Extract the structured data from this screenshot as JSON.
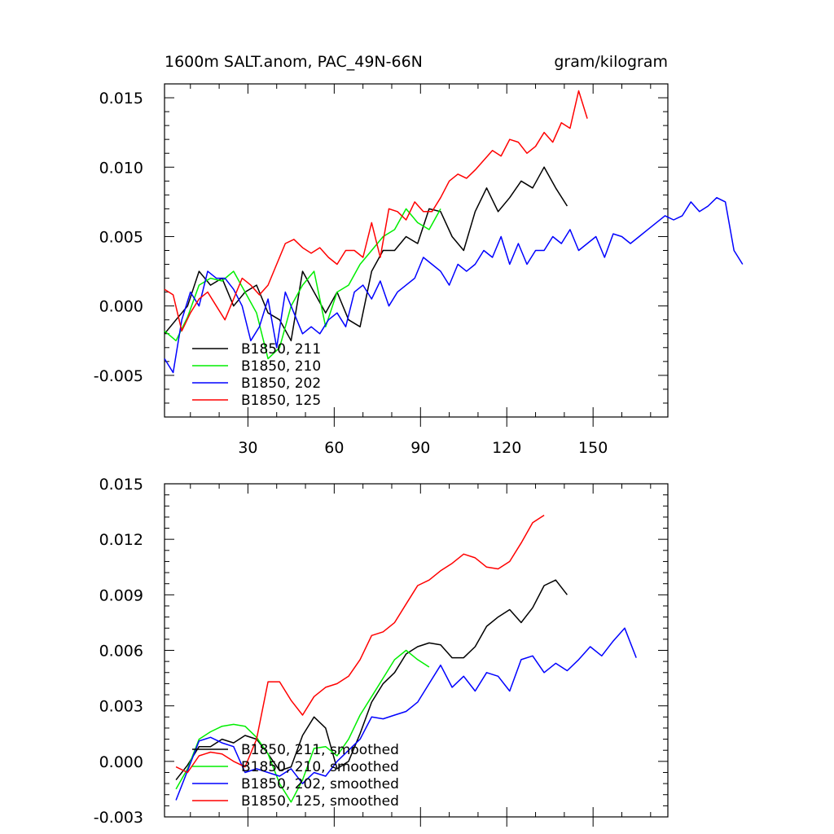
{
  "colors": {
    "211": "#000000",
    "210": "#00ee00",
    "202": "#0000ff",
    "125": "#ff0000"
  },
  "chart_data": [
    {
      "type": "line",
      "title": "1600m SALT.anom, PAC_49N-66N",
      "units": "gram/kilogram",
      "xlim": [
        1,
        176
      ],
      "ylim": [
        -0.008,
        0.016
      ],
      "x_ticks": [
        30,
        60,
        90,
        120,
        150
      ],
      "y_ticks": [
        -0.005,
        0.0,
        0.005,
        0.01,
        0.015
      ],
      "y_tick_labels": [
        "-0.005",
        "0.000",
        "0.005",
        "0.010",
        "0.015"
      ],
      "legend": [
        "B1850, 211",
        "B1850, 210",
        "B1850, 202",
        "B1850, 125"
      ],
      "series": [
        {
          "name": "B1850, 211",
          "color_key": "211",
          "x_start": 1,
          "x_step": 4,
          "values": [
            -0.002,
            -0.001,
            0.0,
            0.0025,
            0.0015,
            0.002,
            0.0,
            0.001,
            0.0015,
            -0.0005,
            -0.001,
            -0.0025,
            0.0025,
            0.001,
            -0.0005,
            0.001,
            -0.001,
            -0.0015,
            0.0025,
            0.004,
            0.004,
            0.005,
            0.0045,
            0.007,
            0.0068,
            0.005,
            0.004,
            0.0068,
            0.0085,
            0.0068,
            0.0078,
            0.009,
            0.0085,
            0.01,
            0.0085,
            0.0072
          ]
        },
        {
          "name": "B1850, 210",
          "color_key": "210",
          "x_start": 1,
          "x_step": 4,
          "values": [
            -0.0018,
            -0.0025,
            -0.0008,
            0.0015,
            0.002,
            0.0018,
            0.0025,
            0.001,
            -0.0005,
            -0.0038,
            -0.003,
            0.0,
            0.0015,
            0.0025,
            -0.0015,
            0.001,
            0.0015,
            0.003,
            0.004,
            0.005,
            0.0055,
            0.007,
            0.006,
            0.0055,
            0.007
          ]
        },
        {
          "name": "B1850, 202",
          "color_key": "202",
          "x_start": 1,
          "x_step": 3,
          "values": [
            -0.0038,
            -0.0048,
            -0.001,
            0.001,
            0.0,
            0.0025,
            0.002,
            0.002,
            0.0012,
            0.0,
            -0.0025,
            -0.0015,
            0.0005,
            -0.003,
            0.001,
            -0.0005,
            -0.002,
            -0.0015,
            -0.002,
            -0.001,
            -0.0005,
            -0.0015,
            0.001,
            0.0015,
            0.0005,
            0.0018,
            0.0,
            0.001,
            0.0015,
            0.002,
            0.0035,
            0.003,
            0.0025,
            0.0015,
            0.003,
            0.0025,
            0.003,
            0.004,
            0.0035,
            0.005,
            0.003,
            0.0045,
            0.003,
            0.004,
            0.004,
            0.005,
            0.0045,
            0.0055,
            0.004,
            0.0045,
            0.005,
            0.0035,
            0.0052,
            0.005,
            0.0045,
            0.005,
            0.0055,
            0.006,
            0.0065,
            0.0062,
            0.0065,
            0.0075,
            0.0068,
            0.0072,
            0.0078,
            0.0075,
            0.004,
            0.003
          ]
        },
        {
          "name": "B1850, 125",
          "color_key": "125",
          "x_start": 1,
          "x_step": 3,
          "values": [
            0.0012,
            0.0008,
            -0.0018,
            -0.0005,
            0.0005,
            0.001,
            0.0,
            -0.001,
            0.0005,
            0.002,
            0.0015,
            0.0008,
            0.0015,
            0.003,
            0.0045,
            0.0048,
            0.0042,
            0.0038,
            0.0042,
            0.0035,
            0.003,
            0.004,
            0.004,
            0.0035,
            0.006,
            0.0035,
            0.007,
            0.0068,
            0.0062,
            0.0075,
            0.0068,
            0.0068,
            0.0078,
            0.009,
            0.0095,
            0.0092,
            0.0098,
            0.0105,
            0.0112,
            0.0108,
            0.012,
            0.0118,
            0.011,
            0.0115,
            0.0125,
            0.0118,
            0.0132,
            0.0128,
            0.0155,
            0.0135
          ]
        }
      ]
    },
    {
      "type": "line",
      "title": "",
      "xlim": [
        1,
        176
      ],
      "ylim": [
        -0.003,
        0.015
      ],
      "x_ticks": [
        30,
        60,
        90,
        120,
        150
      ],
      "y_ticks": [
        -0.003,
        0.0,
        0.003,
        0.006,
        0.009,
        0.012,
        0.015
      ],
      "y_tick_labels": [
        "-0.003",
        "0.000",
        "0.003",
        "0.006",
        "0.009",
        "0.012",
        "0.015"
      ],
      "legend": [
        "B1850, 211, smoothed",
        "B1850, 210, smoothed",
        "B1850, 202, smoothed",
        "B1850, 125, smoothed"
      ],
      "series": [
        {
          "name": "B1850, 211, smoothed",
          "color_key": "211",
          "x_start": 5,
          "x_step": 4,
          "values": [
            -0.001,
            -0.0002,
            0.0008,
            0.0008,
            0.0012,
            0.001,
            0.0014,
            0.0012,
            0.0004,
            -0.0005,
            -0.0003,
            0.0014,
            0.0024,
            0.0018,
            -0.0004,
            0.0,
            0.0015,
            0.0032,
            0.0042,
            0.0048,
            0.0058,
            0.0062,
            0.0064,
            0.0063,
            0.0056,
            0.0056,
            0.0062,
            0.0073,
            0.0078,
            0.0082,
            0.0075,
            0.0083,
            0.0095,
            0.0098,
            0.009
          ]
        },
        {
          "name": "B1850, 210, smoothed",
          "color_key": "210",
          "x_start": 5,
          "x_step": 4,
          "values": [
            -0.0015,
            -0.0004,
            0.0012,
            0.0016,
            0.0019,
            0.002,
            0.0019,
            0.0013,
            0.0004,
            -0.0012,
            -0.0022,
            -0.001,
            0.0007,
            0.0008,
            0.0003,
            0.0012,
            0.0025,
            0.0035,
            0.0045,
            0.0055,
            0.006,
            0.0055,
            0.0051
          ]
        },
        {
          "name": "B1850, 202, smoothed",
          "color_key": "202",
          "x_start": 5,
          "x_step": 4,
          "values": [
            -0.0021,
            -0.0005,
            0.0011,
            0.0013,
            0.001,
            0.0008,
            -0.0006,
            -0.0004,
            -0.0006,
            -0.0008,
            -0.0004,
            -0.0012,
            -0.0006,
            -0.0008,
            0.0,
            0.0006,
            0.0012,
            0.0024,
            0.0023,
            0.0025,
            0.0027,
            0.0032,
            0.0042,
            0.0052,
            0.004,
            0.0046,
            0.0038,
            0.0048,
            0.0046,
            0.0038,
            0.0055,
            0.0057,
            0.0048,
            0.0053,
            0.0049,
            0.0055,
            0.0062,
            0.0057,
            0.0065,
            0.0072,
            0.0056
          ]
        },
        {
          "name": "B1850, 125, smoothed",
          "color_key": "125",
          "x_start": 5,
          "x_step": 4,
          "values": [
            -0.0003,
            -0.0006,
            0.0003,
            0.0005,
            0.0004,
            0.0,
            -0.0003,
            0.0012,
            0.0043,
            0.0043,
            0.0033,
            0.0025,
            0.0035,
            0.004,
            0.0042,
            0.0046,
            0.0055,
            0.0068,
            0.007,
            0.0075,
            0.0085,
            0.0095,
            0.0098,
            0.0103,
            0.0107,
            0.0112,
            0.011,
            0.0105,
            0.0104,
            0.0108,
            0.0118,
            0.0129,
            0.0133
          ]
        }
      ]
    }
  ]
}
